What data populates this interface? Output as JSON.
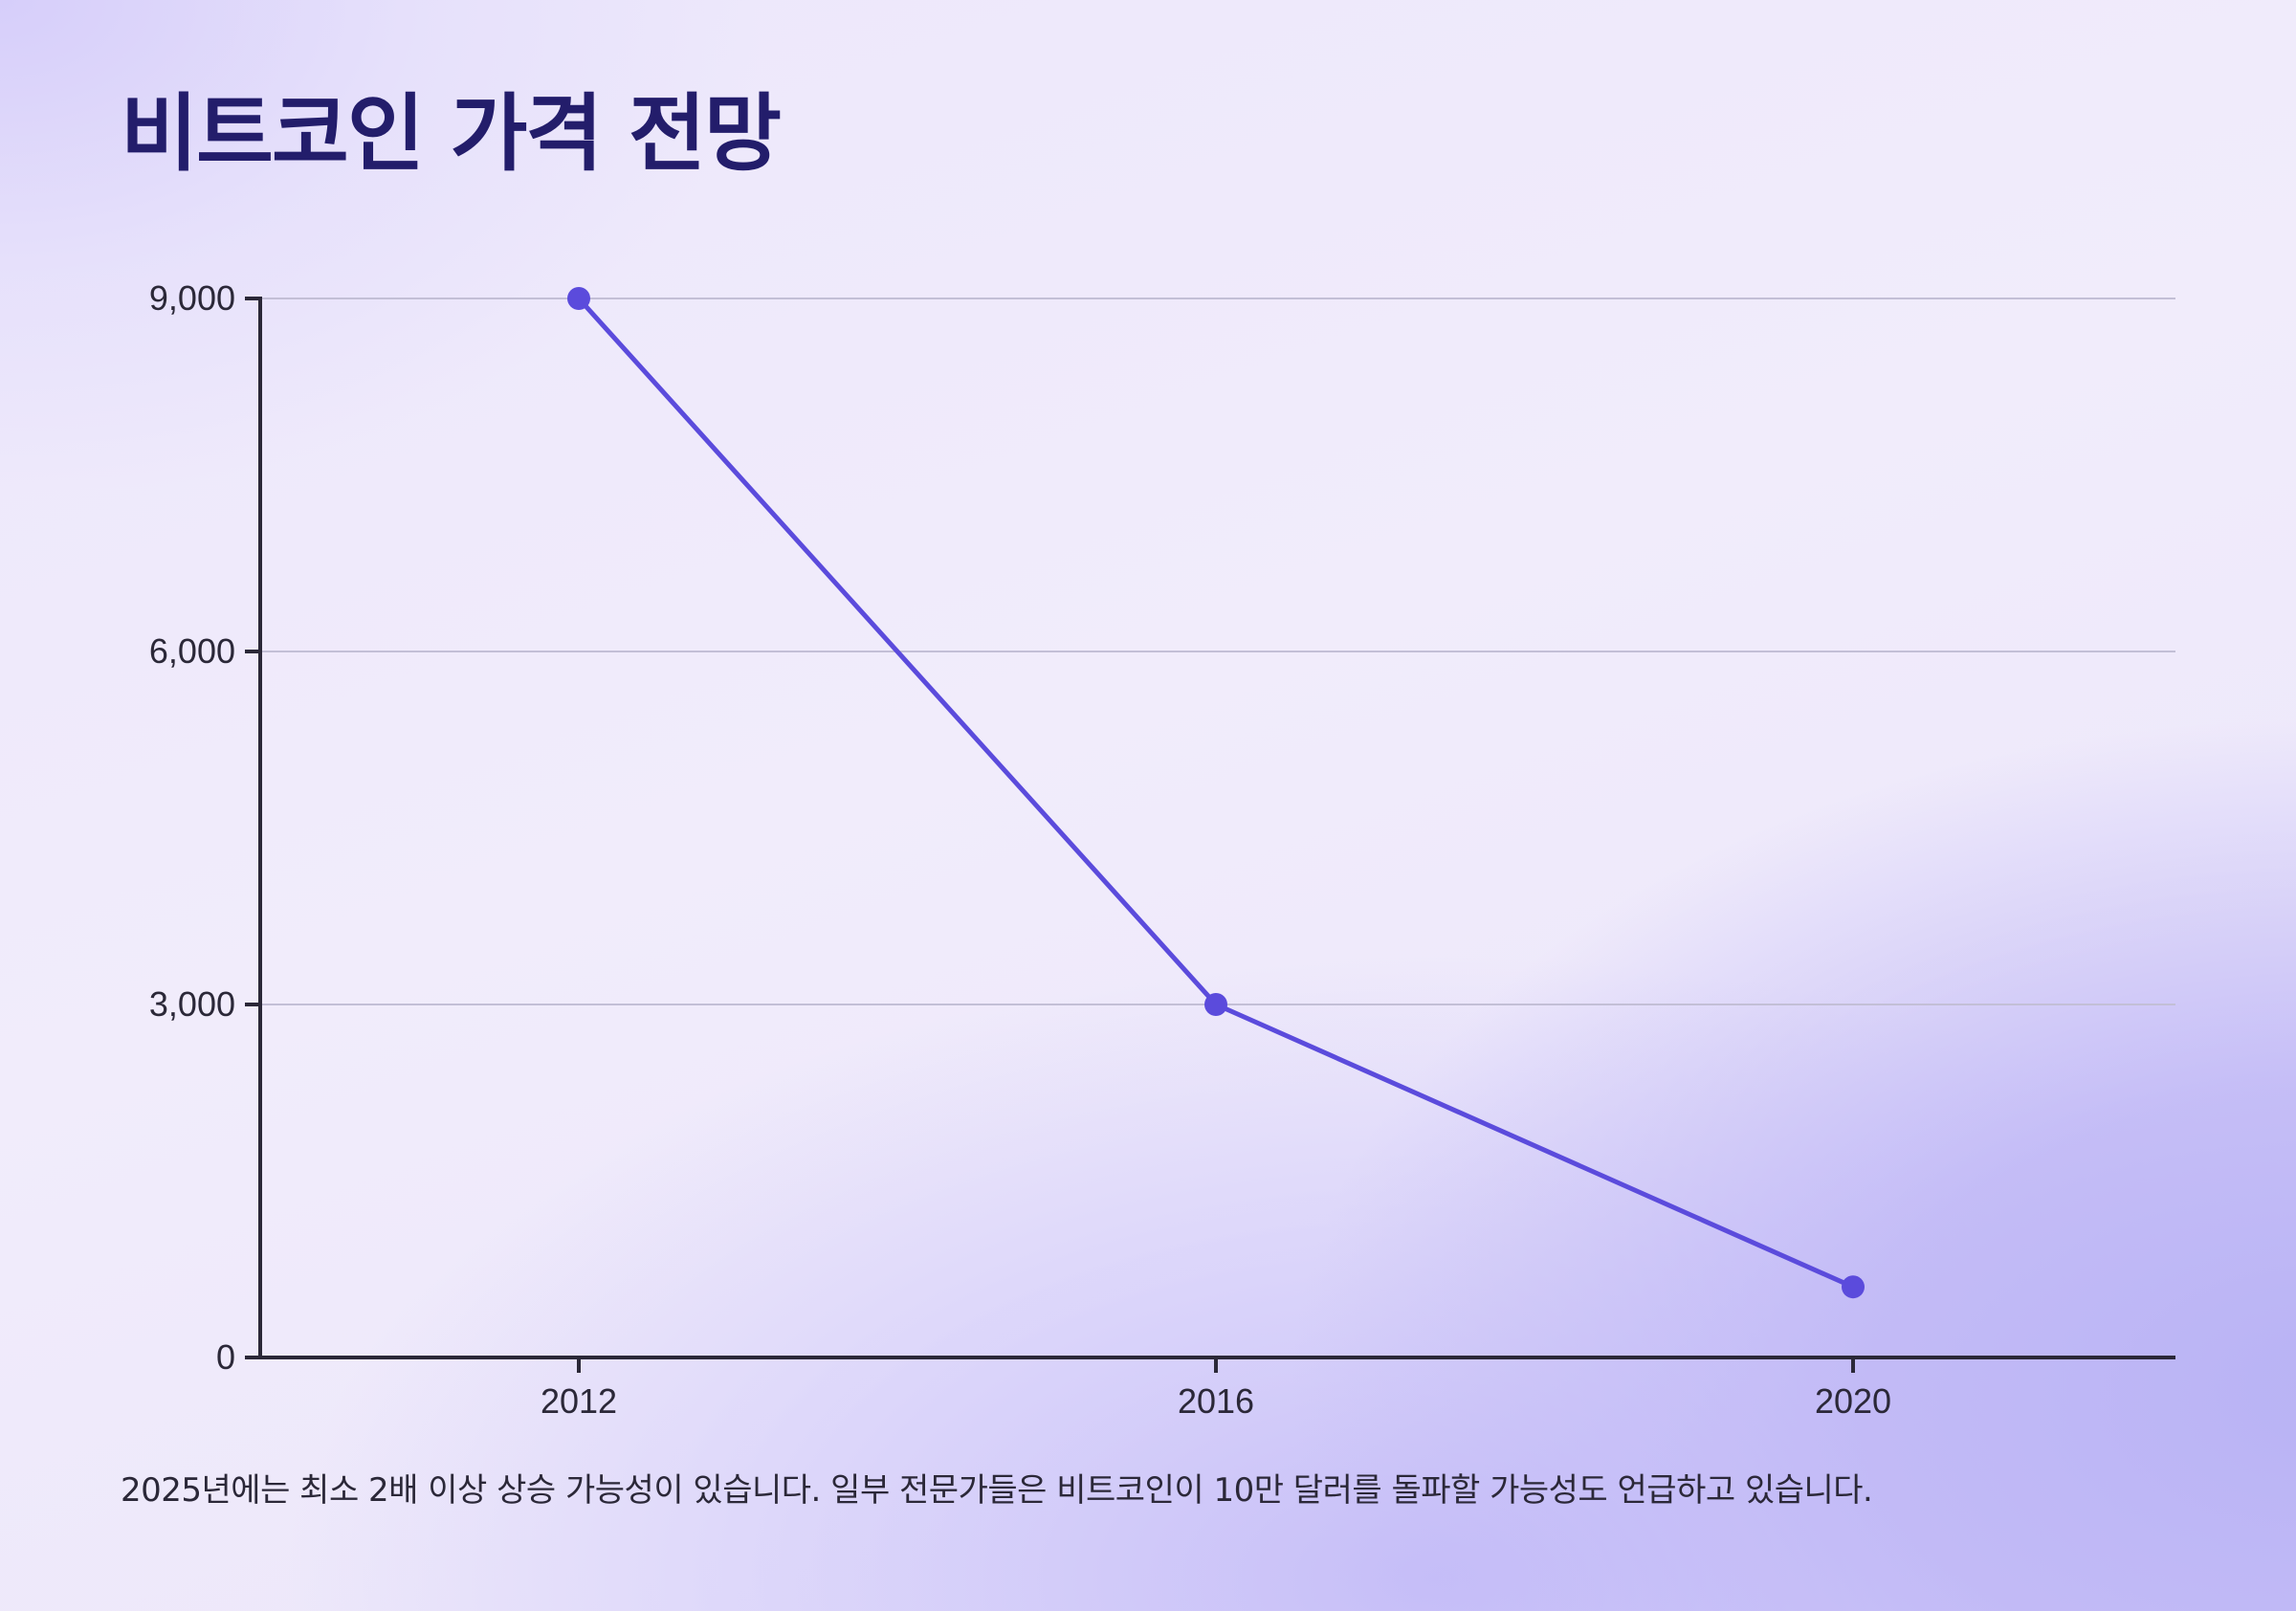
{
  "title": "비트코인 가격 전망",
  "caption": "2025년에는 최소 2배 이상 상승 가능성이 있습니다. 일부 전문가들은 비트코인이 10만 달러를 돌파할 가능성도 언급하고 있습니다.",
  "colors": {
    "line": "#5b4bdc",
    "title": "#231d6b",
    "axis": "#2b2838",
    "grid": "#c3bfd6"
  },
  "chart_data": {
    "type": "line",
    "categories": [
      "2012",
      "2016",
      "2020"
    ],
    "values": [
      9000,
      3000,
      600
    ],
    "title": "",
    "xlabel": "",
    "ylabel": "",
    "ylim": [
      0,
      9000
    ],
    "yticks": [
      0,
      3000,
      6000,
      9000
    ],
    "ytick_labels": [
      "0",
      "3,000",
      "6,000",
      "9,000"
    ],
    "grid": true,
    "legend": "none"
  }
}
